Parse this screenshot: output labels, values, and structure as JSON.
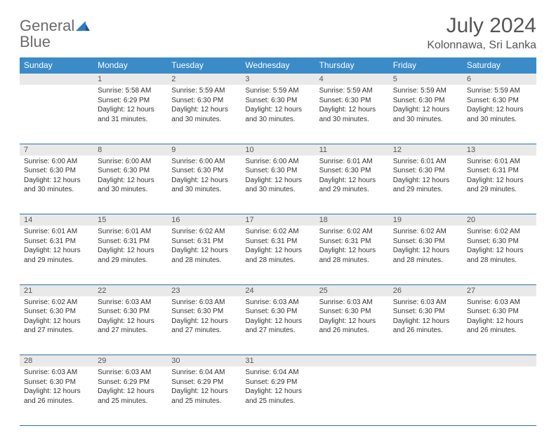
{
  "logo": {
    "word1": "General",
    "word2": "Blue"
  },
  "title": "July 2024",
  "location": "Kolonnawa, Sri Lanka",
  "colors": {
    "header_bg": "#3b8bc9",
    "header_text": "#ffffff",
    "daynum_bg": "#e9e9e9",
    "daynum_text": "#555555",
    "rule": "#2f6fa8",
    "logo_gray": "#6b6b6b",
    "logo_blue": "#2f7bbf",
    "body_text": "#333333",
    "page_bg": "#ffffff"
  },
  "typography": {
    "title_fontsize": 30,
    "location_fontsize": 16,
    "logo_fontsize": 22,
    "header_fontsize": 12,
    "daynum_fontsize": 11,
    "detail_fontsize": 10
  },
  "weekdays": [
    "Sunday",
    "Monday",
    "Tuesday",
    "Wednesday",
    "Thursday",
    "Friday",
    "Saturday"
  ],
  "weeks": [
    {
      "nums": [
        "",
        "1",
        "2",
        "3",
        "4",
        "5",
        "6"
      ],
      "details": [
        "",
        "Sunrise: 5:58 AM\nSunset: 6:29 PM\nDaylight: 12 hours and 31 minutes.",
        "Sunrise: 5:59 AM\nSunset: 6:30 PM\nDaylight: 12 hours and 30 minutes.",
        "Sunrise: 5:59 AM\nSunset: 6:30 PM\nDaylight: 12 hours and 30 minutes.",
        "Sunrise: 5:59 AM\nSunset: 6:30 PM\nDaylight: 12 hours and 30 minutes.",
        "Sunrise: 5:59 AM\nSunset: 6:30 PM\nDaylight: 12 hours and 30 minutes.",
        "Sunrise: 5:59 AM\nSunset: 6:30 PM\nDaylight: 12 hours and 30 minutes."
      ]
    },
    {
      "nums": [
        "7",
        "8",
        "9",
        "10",
        "11",
        "12",
        "13"
      ],
      "details": [
        "Sunrise: 6:00 AM\nSunset: 6:30 PM\nDaylight: 12 hours and 30 minutes.",
        "Sunrise: 6:00 AM\nSunset: 6:30 PM\nDaylight: 12 hours and 30 minutes.",
        "Sunrise: 6:00 AM\nSunset: 6:30 PM\nDaylight: 12 hours and 30 minutes.",
        "Sunrise: 6:00 AM\nSunset: 6:30 PM\nDaylight: 12 hours and 30 minutes.",
        "Sunrise: 6:01 AM\nSunset: 6:30 PM\nDaylight: 12 hours and 29 minutes.",
        "Sunrise: 6:01 AM\nSunset: 6:30 PM\nDaylight: 12 hours and 29 minutes.",
        "Sunrise: 6:01 AM\nSunset: 6:31 PM\nDaylight: 12 hours and 29 minutes."
      ]
    },
    {
      "nums": [
        "14",
        "15",
        "16",
        "17",
        "18",
        "19",
        "20"
      ],
      "details": [
        "Sunrise: 6:01 AM\nSunset: 6:31 PM\nDaylight: 12 hours and 29 minutes.",
        "Sunrise: 6:01 AM\nSunset: 6:31 PM\nDaylight: 12 hours and 29 minutes.",
        "Sunrise: 6:02 AM\nSunset: 6:31 PM\nDaylight: 12 hours and 28 minutes.",
        "Sunrise: 6:02 AM\nSunset: 6:31 PM\nDaylight: 12 hours and 28 minutes.",
        "Sunrise: 6:02 AM\nSunset: 6:31 PM\nDaylight: 12 hours and 28 minutes.",
        "Sunrise: 6:02 AM\nSunset: 6:30 PM\nDaylight: 12 hours and 28 minutes.",
        "Sunrise: 6:02 AM\nSunset: 6:30 PM\nDaylight: 12 hours and 28 minutes."
      ]
    },
    {
      "nums": [
        "21",
        "22",
        "23",
        "24",
        "25",
        "26",
        "27"
      ],
      "details": [
        "Sunrise: 6:02 AM\nSunset: 6:30 PM\nDaylight: 12 hours and 27 minutes.",
        "Sunrise: 6:03 AM\nSunset: 6:30 PM\nDaylight: 12 hours and 27 minutes.",
        "Sunrise: 6:03 AM\nSunset: 6:30 PM\nDaylight: 12 hours and 27 minutes.",
        "Sunrise: 6:03 AM\nSunset: 6:30 PM\nDaylight: 12 hours and 27 minutes.",
        "Sunrise: 6:03 AM\nSunset: 6:30 PM\nDaylight: 12 hours and 26 minutes.",
        "Sunrise: 6:03 AM\nSunset: 6:30 PM\nDaylight: 12 hours and 26 minutes.",
        "Sunrise: 6:03 AM\nSunset: 6:30 PM\nDaylight: 12 hours and 26 minutes."
      ]
    },
    {
      "nums": [
        "28",
        "29",
        "30",
        "31",
        "",
        "",
        ""
      ],
      "details": [
        "Sunrise: 6:03 AM\nSunset: 6:30 PM\nDaylight: 12 hours and 26 minutes.",
        "Sunrise: 6:03 AM\nSunset: 6:29 PM\nDaylight: 12 hours and 25 minutes.",
        "Sunrise: 6:04 AM\nSunset: 6:29 PM\nDaylight: 12 hours and 25 minutes.",
        "Sunrise: 6:04 AM\nSunset: 6:29 PM\nDaylight: 12 hours and 25 minutes.",
        "",
        "",
        ""
      ]
    }
  ]
}
